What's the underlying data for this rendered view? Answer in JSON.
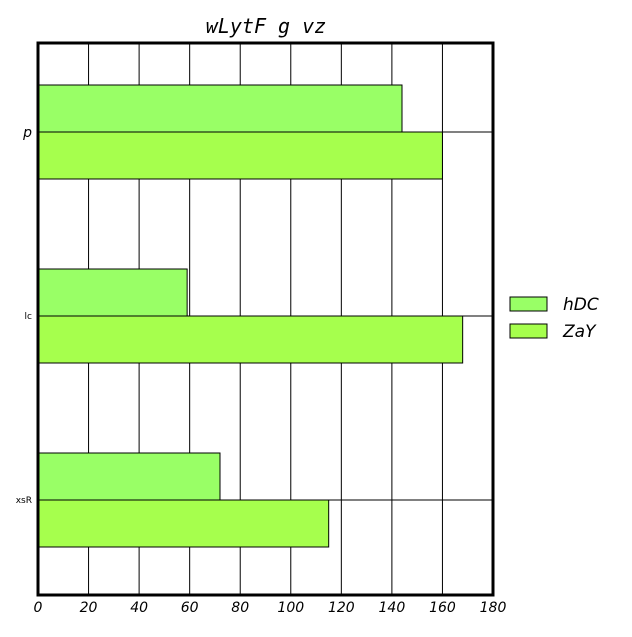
{
  "chart_data": {
    "type": "bar",
    "orientation": "horizontal",
    "title": "wLytF g vz",
    "xlabel": "",
    "ylabel": "",
    "xlim": [
      0,
      180
    ],
    "x_ticks": [
      "0",
      "20",
      "40",
      "60",
      "80",
      "100",
      "120",
      "140",
      "160",
      "180"
    ],
    "categories": [
      "p",
      "lc",
      "xsR"
    ],
    "series": [
      {
        "name": "hDC",
        "values": [
          144,
          59,
          72
        ],
        "color": "#99ff66"
      },
      {
        "name": "ZaY",
        "values": [
          160,
          168,
          115
        ],
        "color": "#a6ff4d"
      }
    ],
    "grid": true,
    "legend_position": "right"
  }
}
